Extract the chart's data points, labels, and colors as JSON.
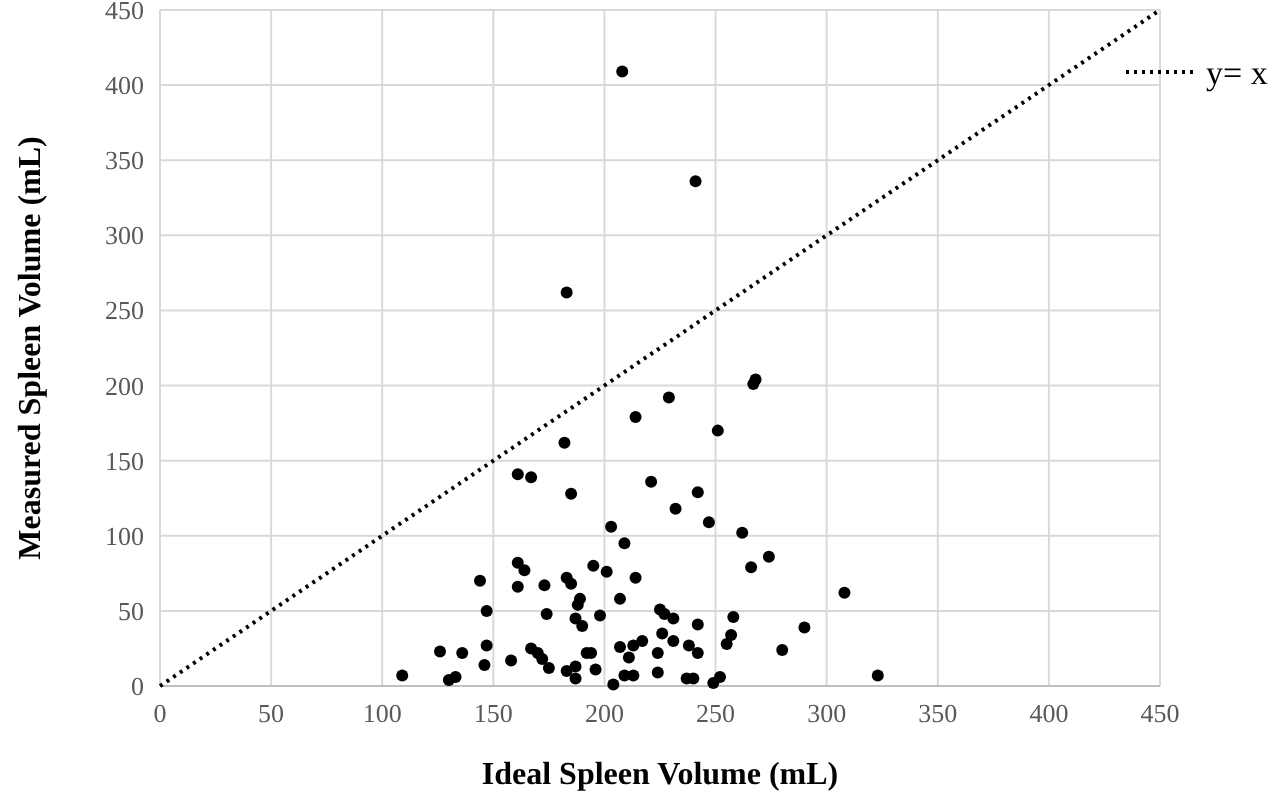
{
  "chart_data": {
    "type": "scatter",
    "xlabel": "Ideal Spleen Volume (mL)",
    "ylabel": "Measured Spleen Volume (mL)",
    "xlim": [
      0,
      450
    ],
    "ylim": [
      0,
      450
    ],
    "xticks": [
      0,
      50,
      100,
      150,
      200,
      250,
      300,
      350,
      400,
      450
    ],
    "yticks": [
      0,
      50,
      100,
      150,
      200,
      250,
      300,
      350,
      400,
      450
    ],
    "grid": true,
    "legend": "top right",
    "marker": "circle",
    "series": [
      {
        "color": "#000000",
        "x": [
          208,
          241,
          183,
          229,
          214,
          182,
          161,
          167,
          185,
          221,
          242,
          232,
          203,
          209,
          161,
          164,
          144,
          161,
          173,
          183,
          185,
          195,
          201,
          214,
          207,
          189,
          188,
          147,
          174,
          187,
          190,
          198,
          225,
          227,
          231,
          242,
          147,
          146,
          158,
          167,
          170,
          172,
          175,
          183,
          187,
          187,
          192,
          194,
          196,
          204,
          209,
          213,
          207,
          211,
          213,
          217,
          224,
          224,
          226,
          231,
          238,
          242,
          237,
          240,
          136,
          126,
          109,
          130,
          133,
          267,
          268,
          251,
          247,
          262,
          274,
          266,
          308,
          258,
          257,
          255,
          290,
          280,
          323,
          249,
          252
        ],
        "values": [
          409,
          336,
          262,
          192,
          179,
          162,
          141,
          139,
          128,
          136,
          129,
          118,
          106,
          95,
          82,
          77,
          70,
          66,
          67,
          72,
          68,
          80,
          76,
          72,
          58,
          58,
          54,
          50,
          48,
          45,
          40,
          47,
          51,
          48,
          45,
          41,
          27,
          14,
          17,
          25,
          22,
          18,
          12,
          10,
          13,
          5,
          22,
          22,
          11,
          1,
          7,
          7,
          26,
          19,
          27,
          30,
          22,
          9,
          35,
          30,
          27,
          22,
          5,
          5,
          22,
          23,
          7,
          4,
          6,
          201,
          204,
          170,
          109,
          102,
          86,
          79,
          62,
          46,
          34,
          28,
          39,
          24,
          7,
          2,
          6
        ]
      },
      {
        "type": "line",
        "name": "y= x",
        "color": "#000000",
        "line_style": "dotted",
        "marker": "none",
        "x": [
          0,
          450
        ],
        "values": [
          0,
          450
        ]
      }
    ]
  }
}
